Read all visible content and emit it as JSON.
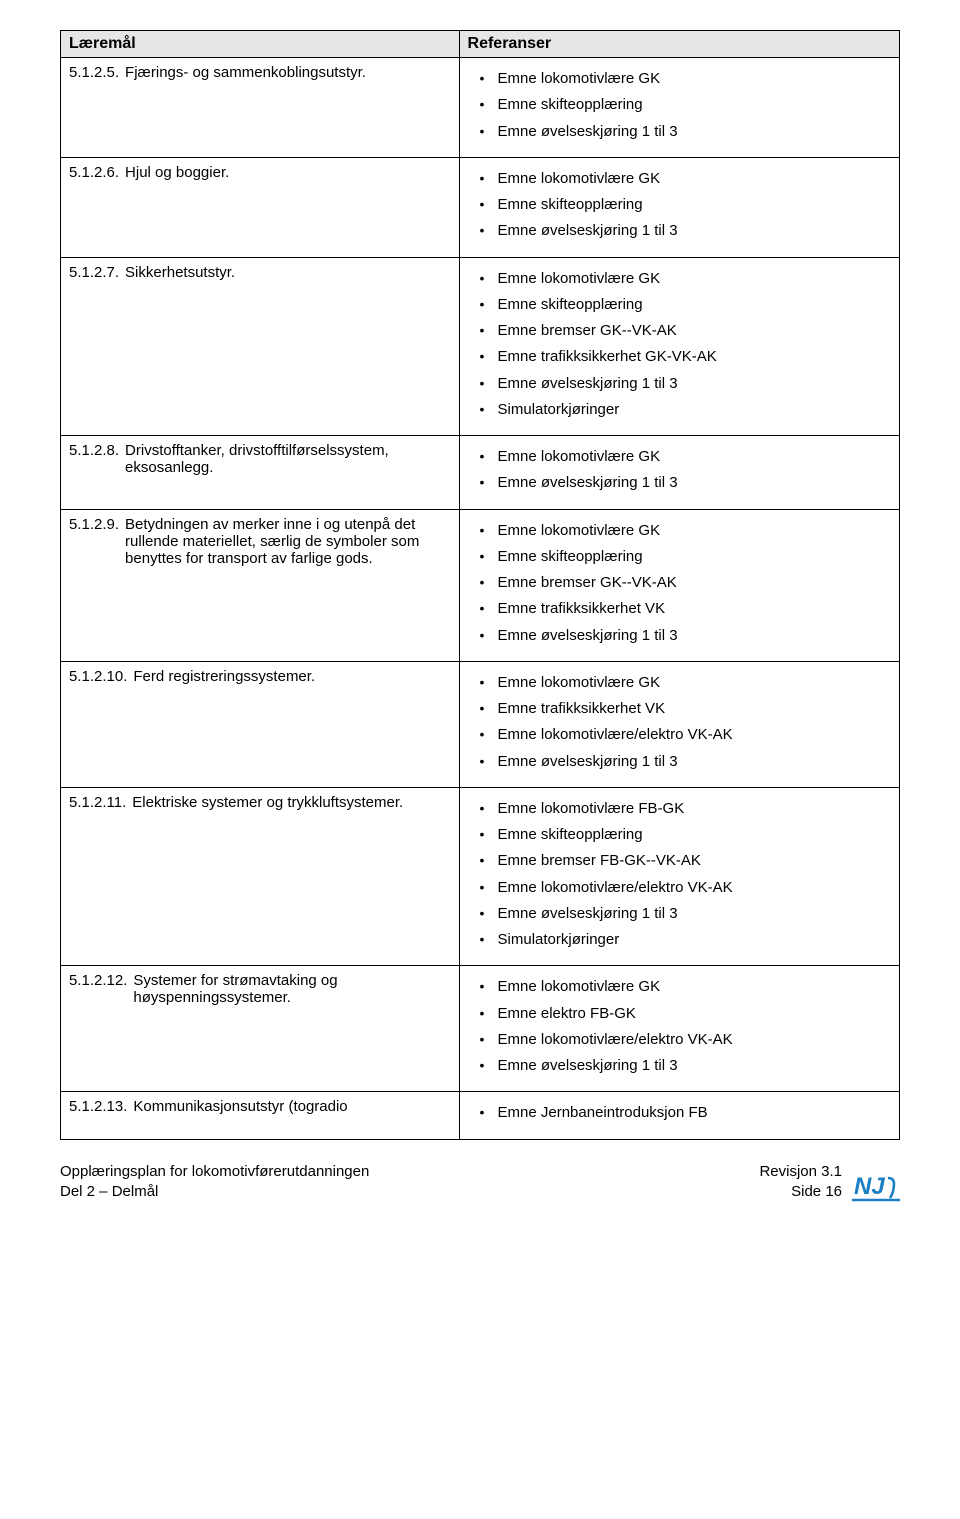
{
  "headers": {
    "left": "Læremål",
    "right": "Referanser"
  },
  "rows": [
    {
      "num": "5.1.2.5.",
      "text": "Fjærings- og sammenkoblingsutstyr.",
      "refs": [
        "Emne lokomotivlære GK",
        "Emne skifteopplæring",
        "Emne øvelseskjøring 1 til 3"
      ]
    },
    {
      "num": "5.1.2.6.",
      "text": "Hjul og boggier.",
      "refs": [
        "Emne lokomotivlære GK",
        "Emne skifteopplæring",
        "Emne øvelseskjøring 1 til 3"
      ]
    },
    {
      "num": "5.1.2.7.",
      "text": "Sikkerhetsutstyr.",
      "refs": [
        "Emne lokomotivlære GK",
        "Emne skifteopplæring",
        "Emne bremser GK--VK-AK",
        "Emne trafikksikkerhet GK-VK-AK",
        "Emne øvelseskjøring 1 til 3",
        "Simulatorkjøringer"
      ]
    },
    {
      "num": "5.1.2.8.",
      "text": "Drivstofftanker, drivstofftilførselssystem, eksosanlegg.",
      "refs": [
        "Emne lokomotivlære GK",
        "Emne øvelseskjøring 1 til 3"
      ]
    },
    {
      "num": "5.1.2.9.",
      "text": "Betydningen av merker inne i og utenpå det rullende materiellet, særlig de symboler som benyttes for transport av farlige gods.",
      "refs": [
        "Emne lokomotivlære GK",
        "Emne skifteopplæring",
        "Emne bremser GK--VK-AK",
        "Emne trafikksikkerhet VK",
        "Emne øvelseskjøring 1 til 3"
      ]
    },
    {
      "num": "5.1.2.10.",
      "text": "Ferd registreringssystemer.",
      "refs": [
        "Emne lokomotivlære GK",
        "Emne trafikksikkerhet VK",
        "Emne lokomotivlære/elektro VK-AK",
        "Emne øvelseskjøring 1 til 3"
      ]
    },
    {
      "num": "5.1.2.11.",
      "text": "Elektriske systemer og trykkluftsystemer.",
      "refs": [
        "Emne lokomotivlære FB-GK",
        "Emne skifteopplæring",
        "Emne bremser FB-GK--VK-AK",
        "Emne lokomotivlære/elektro VK-AK",
        "Emne øvelseskjøring 1 til 3",
        "Simulatorkjøringer"
      ]
    },
    {
      "num": "5.1.2.12.",
      "text": "Systemer for strømavtaking og høyspenningssystemer.",
      "refs": [
        "Emne lokomotivlære GK",
        "Emne elektro FB-GK",
        "Emne lokomotivlære/elektro VK-AK",
        "Emne øvelseskjøring 1 til 3"
      ]
    },
    {
      "num": "5.1.2.13.",
      "text": "Kommunikasjonsutstyr (togradio",
      "refs": [
        "Emne Jernbaneintroduksjon FB"
      ],
      "last": true
    }
  ],
  "footer": {
    "left1": "Opplæringsplan for lokomotivførerutdanningen",
    "left2": "Del 2 – Delmål",
    "right1": "Revisjon 3.1",
    "right2": "Side 16"
  },
  "styles": {
    "header_bg": "#e6e6e6",
    "border_color": "#000000",
    "logo_color": "#1a7fc4"
  }
}
